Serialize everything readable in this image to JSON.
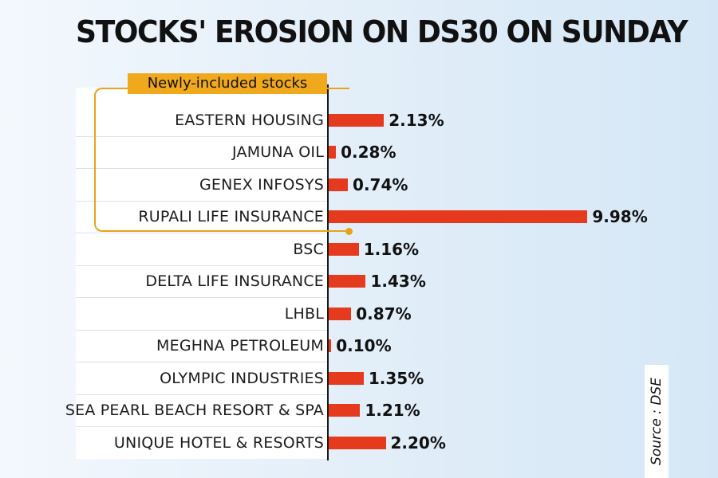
{
  "title": "STOCKS' EROSION ON DS30 ON SUNDAY",
  "legend": "Newly-included stocks",
  "source": "Source : DSE",
  "colors": {
    "bar": "#e63a1f",
    "legend": "#f0a81c"
  },
  "chart_data": {
    "type": "bar",
    "orientation": "horizontal",
    "title": "STOCKS' EROSION ON DS30 ON SUNDAY",
    "categories": [
      "EASTERN HOUSING",
      "JAMUNA OIL",
      "GENEX INFOSYS",
      "RUPALI LIFE INSURANCE",
      "BSC",
      "DELTA LIFE INSURANCE",
      "LHBL",
      "MEGHNA PETROLEUM",
      "OLYMPIC INDUSTRIES",
      "SEA PEARL BEACH RESORT & SPA",
      "UNIQUE HOTEL & RESORTS"
    ],
    "values": [
      2.13,
      0.28,
      0.74,
      9.98,
      1.16,
      1.43,
      0.87,
      0.1,
      1.35,
      1.21,
      2.2
    ],
    "value_labels": [
      "2.13%",
      "0.28%",
      "0.74%",
      "9.98%",
      "1.16%",
      "1.43%",
      "0.87%",
      "0.10%",
      "1.35%",
      "1.21%",
      "2.20%"
    ],
    "highlighted_categories": [
      "EASTERN HOUSING",
      "JAMUNA OIL",
      "GENEX INFOSYS",
      "RUPALI LIFE INSURANCE"
    ],
    "xlim": [
      0,
      10
    ],
    "grid": false,
    "xlabel": "",
    "ylabel": ""
  }
}
